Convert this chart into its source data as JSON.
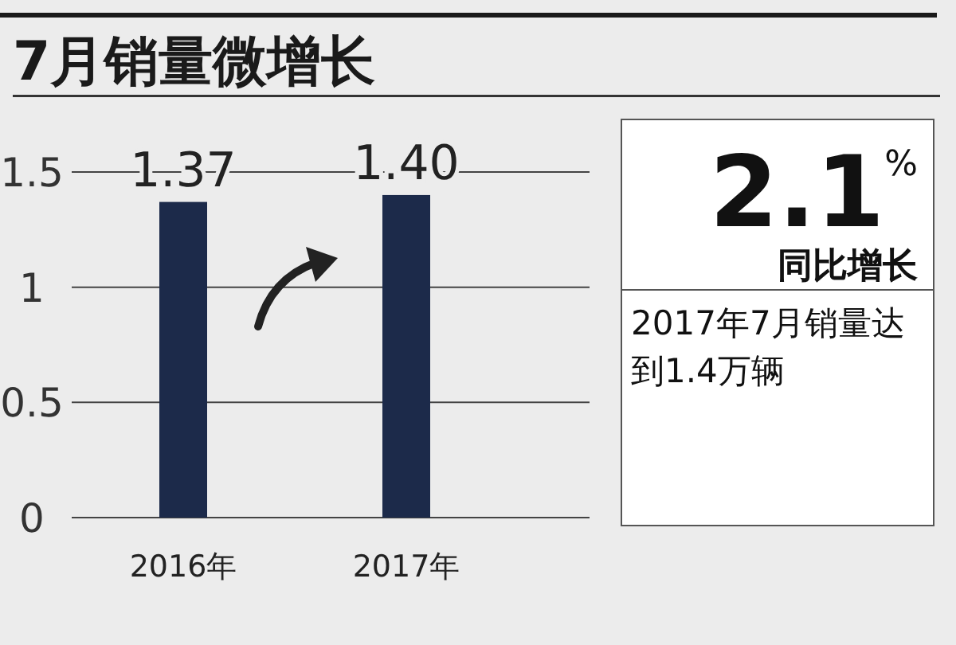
{
  "chart_data": {
    "type": "bar",
    "title": "7月销量微增长",
    "categories": [
      "2016年",
      "2017年"
    ],
    "values": [
      1.37,
      1.4
    ],
    "value_labels": [
      "1.37",
      "1.40"
    ],
    "color": "#1c2a4a",
    "ylim": [
      0,
      1.5
    ],
    "yticks": [
      0,
      0.5,
      1,
      1.5
    ],
    "grid": "y",
    "annotations": [
      "2.1%",
      "同比增长",
      "2017年7月销量达到1.4万辆"
    ]
  }
}
